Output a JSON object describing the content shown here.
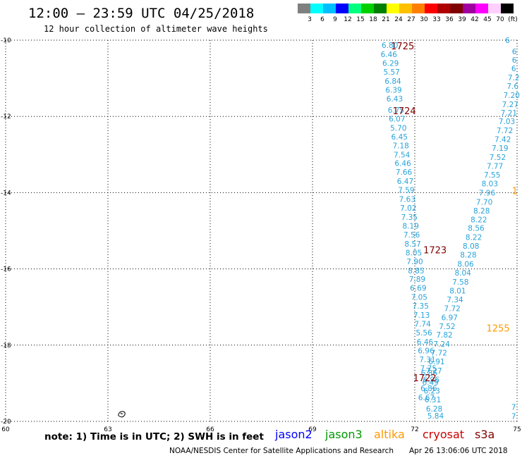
{
  "header": {
    "title": "12:00 – 23:59 UTC 04/25/2018",
    "subtitle": "12 hour collection of altimeter wave heights"
  },
  "colorbar": {
    "colors": [
      "#808080",
      "#00ffff",
      "#00bfff",
      "#0000ff",
      "#00ff7f",
      "#00d000",
      "#008000",
      "#ffff00",
      "#ffc000",
      "#ff8000",
      "#ff0000",
      "#b00000",
      "#800000",
      "#a000a0",
      "#ff00ff",
      "#ffd0ff",
      "#000000"
    ],
    "labels": [
      "3",
      "6",
      "9",
      "12",
      "15",
      "18",
      "21",
      "24",
      "27",
      "30",
      "33",
      "36",
      "39",
      "42",
      "45",
      "70",
      "(ft)"
    ]
  },
  "chart_data": {
    "type": "scatter",
    "xlim": [
      60,
      75
    ],
    "ylim": [
      -20,
      -10
    ],
    "x_ticks": [
      "60",
      "63",
      "66",
      "69",
      "72",
      "75"
    ],
    "y_ticks": [
      "-10",
      "-12",
      "-14",
      "-16",
      "-18",
      "-20"
    ],
    "grid": true,
    "series": [
      {
        "name": "",
        "color": "#29a3d9",
        "points": [
          {
            "x": 71.27,
            "y": -10.13,
            "label": "6.80"
          },
          {
            "x": 71.24,
            "y": -10.37,
            "label": "6.46"
          },
          {
            "x": 71.29,
            "y": -10.6,
            "label": "6.29"
          },
          {
            "x": 71.32,
            "y": -10.83,
            "label": "5.57"
          },
          {
            "x": 71.36,
            "y": -11.07,
            "label": "6.84"
          },
          {
            "x": 71.38,
            "y": -11.3,
            "label": "6.39"
          },
          {
            "x": 71.41,
            "y": -11.53,
            "label": "6.43"
          },
          {
            "x": 71.45,
            "y": -11.83,
            "label": "6.75"
          },
          {
            "x": 71.48,
            "y": -12.06,
            "label": "6.07"
          },
          {
            "x": 71.52,
            "y": -12.3,
            "label": "5.70"
          },
          {
            "x": 71.55,
            "y": -12.53,
            "label": "6.45"
          },
          {
            "x": 71.59,
            "y": -12.76,
            "label": "7.18"
          },
          {
            "x": 71.62,
            "y": -13.0,
            "label": "7.54"
          },
          {
            "x": 71.65,
            "y": -13.23,
            "label": "6.46"
          },
          {
            "x": 71.68,
            "y": -13.46,
            "label": "7.66"
          },
          {
            "x": 71.72,
            "y": -13.7,
            "label": "6.47"
          },
          {
            "x": 71.75,
            "y": -13.93,
            "label": "7.59"
          },
          {
            "x": 71.78,
            "y": -14.17,
            "label": "7.63"
          },
          {
            "x": 71.81,
            "y": -14.4,
            "label": "7.02"
          },
          {
            "x": 71.84,
            "y": -14.64,
            "label": "7.35"
          },
          {
            "x": 71.88,
            "y": -14.87,
            "label": "8.19"
          },
          {
            "x": 71.91,
            "y": -15.1,
            "label": "7.56"
          },
          {
            "x": 71.94,
            "y": -15.34,
            "label": "8.57"
          },
          {
            "x": 71.97,
            "y": -15.57,
            "label": "8.05"
          },
          {
            "x": 72.0,
            "y": -15.8,
            "label": "7.90"
          },
          {
            "x": 72.04,
            "y": -16.04,
            "label": "8.85"
          },
          {
            "x": 72.07,
            "y": -16.27,
            "label": "7.89"
          },
          {
            "x": 72.1,
            "y": -16.5,
            "label": "6.69"
          },
          {
            "x": 72.13,
            "y": -16.74,
            "label": "7.05"
          },
          {
            "x": 72.17,
            "y": -16.97,
            "label": "7.35"
          },
          {
            "x": 72.2,
            "y": -17.21,
            "label": "7.13"
          },
          {
            "x": 72.23,
            "y": -17.44,
            "label": "7.74"
          },
          {
            "x": 72.27,
            "y": -17.67,
            "label": "5.56"
          },
          {
            "x": 72.3,
            "y": -17.91,
            "label": "6.46"
          },
          {
            "x": 72.33,
            "y": -18.14,
            "label": "6.96"
          },
          {
            "x": 72.37,
            "y": -18.37,
            "label": "7.31"
          },
          {
            "x": 72.4,
            "y": -18.6,
            "label": "7.75"
          },
          {
            "x": 72.42,
            "y": -18.72,
            "label": "6.86"
          },
          {
            "x": 72.46,
            "y": -18.97,
            "label": "6.49"
          },
          {
            "x": 72.5,
            "y": -19.2,
            "label": "6.23"
          },
          {
            "x": 72.53,
            "y": -19.43,
            "label": "6.31"
          },
          {
            "x": 72.57,
            "y": -19.67,
            "label": "6.28"
          },
          {
            "x": 72.61,
            "y": -19.85,
            "label": "5.84"
          },
          {
            "x": 74.72,
            "y": -10.0,
            "label": "6"
          },
          {
            "x": 74.92,
            "y": -10.3,
            "label": "6"
          },
          {
            "x": 74.92,
            "y": -10.52,
            "label": "6"
          },
          {
            "x": 74.9,
            "y": -10.74,
            "label": "6"
          },
          {
            "x": 74.9,
            "y": -10.98,
            "label": "7.2"
          },
          {
            "x": 74.87,
            "y": -11.2,
            "label": "7.6"
          },
          {
            "x": 74.84,
            "y": -11.44,
            "label": "7.20"
          },
          {
            "x": 74.8,
            "y": -11.68,
            "label": "7.27"
          },
          {
            "x": 74.76,
            "y": -11.9,
            "label": "7.21"
          },
          {
            "x": 74.7,
            "y": -12.13,
            "label": "7.03"
          },
          {
            "x": 74.64,
            "y": -12.37,
            "label": "7.72"
          },
          {
            "x": 74.58,
            "y": -12.6,
            "label": "7.42"
          },
          {
            "x": 74.5,
            "y": -12.83,
            "label": "7.19"
          },
          {
            "x": 74.43,
            "y": -13.07,
            "label": "7.52"
          },
          {
            "x": 74.35,
            "y": -13.3,
            "label": "7.77"
          },
          {
            "x": 74.27,
            "y": -13.53,
            "label": "7.55"
          },
          {
            "x": 74.2,
            "y": -13.76,
            "label": "8.03"
          },
          {
            "x": 74.12,
            "y": -14.0,
            "label": "7.96"
          },
          {
            "x": 74.04,
            "y": -14.24,
            "label": "7.70"
          },
          {
            "x": 73.96,
            "y": -14.47,
            "label": "8.28"
          },
          {
            "x": 73.88,
            "y": -14.7,
            "label": "8.22"
          },
          {
            "x": 73.8,
            "y": -14.93,
            "label": "8.56"
          },
          {
            "x": 73.73,
            "y": -15.17,
            "label": "8.22"
          },
          {
            "x": 73.65,
            "y": -15.4,
            "label": "8.08"
          },
          {
            "x": 73.57,
            "y": -15.63,
            "label": "8.28"
          },
          {
            "x": 73.49,
            "y": -15.87,
            "label": "8.06"
          },
          {
            "x": 73.41,
            "y": -16.1,
            "label": "8.04"
          },
          {
            "x": 73.34,
            "y": -16.34,
            "label": "7.58"
          },
          {
            "x": 73.26,
            "y": -16.57,
            "label": "8.01"
          },
          {
            "x": 73.18,
            "y": -16.8,
            "label": "7.34"
          },
          {
            "x": 73.1,
            "y": -17.03,
            "label": "7.72"
          },
          {
            "x": 73.02,
            "y": -17.27,
            "label": "6.97"
          },
          {
            "x": 72.95,
            "y": -17.5,
            "label": "7.52"
          },
          {
            "x": 72.87,
            "y": -17.73,
            "label": "7.82"
          },
          {
            "x": 72.79,
            "y": -17.97,
            "label": "7.24"
          },
          {
            "x": 72.71,
            "y": -18.2,
            "label": "7.72"
          },
          {
            "x": 72.64,
            "y": -18.43,
            "label": "6.91"
          },
          {
            "x": 72.56,
            "y": -18.67,
            "label": "7.27"
          },
          {
            "x": 72.48,
            "y": -18.9,
            "label": "6.96"
          },
          {
            "x": 72.41,
            "y": -19.13,
            "label": "6.86"
          },
          {
            "x": 72.34,
            "y": -19.37,
            "label": "6.67"
          },
          {
            "x": 74.9,
            "y": -19.62,
            "label": "7"
          },
          {
            "x": 74.9,
            "y": -19.86,
            "label": "7"
          }
        ]
      }
    ],
    "time_stamps": [
      {
        "x": 71.3,
        "y": -10.15,
        "text": "1725",
        "color": "#800000"
      },
      {
        "x": 71.35,
        "y": -11.85,
        "text": "1724",
        "color": "#800000"
      },
      {
        "x": 72.25,
        "y": -15.5,
        "text": "1723",
        "color": "#800000"
      },
      {
        "x": 71.95,
        "y": -18.85,
        "text": "1722",
        "color": "#800000"
      },
      {
        "x": 74.1,
        "y": -17.55,
        "text": "1255",
        "color": "#ff9900"
      },
      {
        "x": 74.85,
        "y": -13.95,
        "text": "1",
        "color": "#ff9900"
      }
    ]
  },
  "note": "note: 1) Time is in UTC; 2) SWH is in feet",
  "legend": [
    {
      "name": "jason2",
      "color": "#0000ff"
    },
    {
      "name": "jason3",
      "color": "#009900"
    },
    {
      "name": "altika",
      "color": "#ff9900"
    },
    {
      "name": "cryosat",
      "color": "#cc0000"
    },
    {
      "name": "s3a",
      "color": "#800000"
    }
  ],
  "footer": {
    "credit": "NOAA/NESDIS Center for Satellite Applications and Research",
    "timestamp": "Apr 26 13:06:06 UTC 2018"
  }
}
